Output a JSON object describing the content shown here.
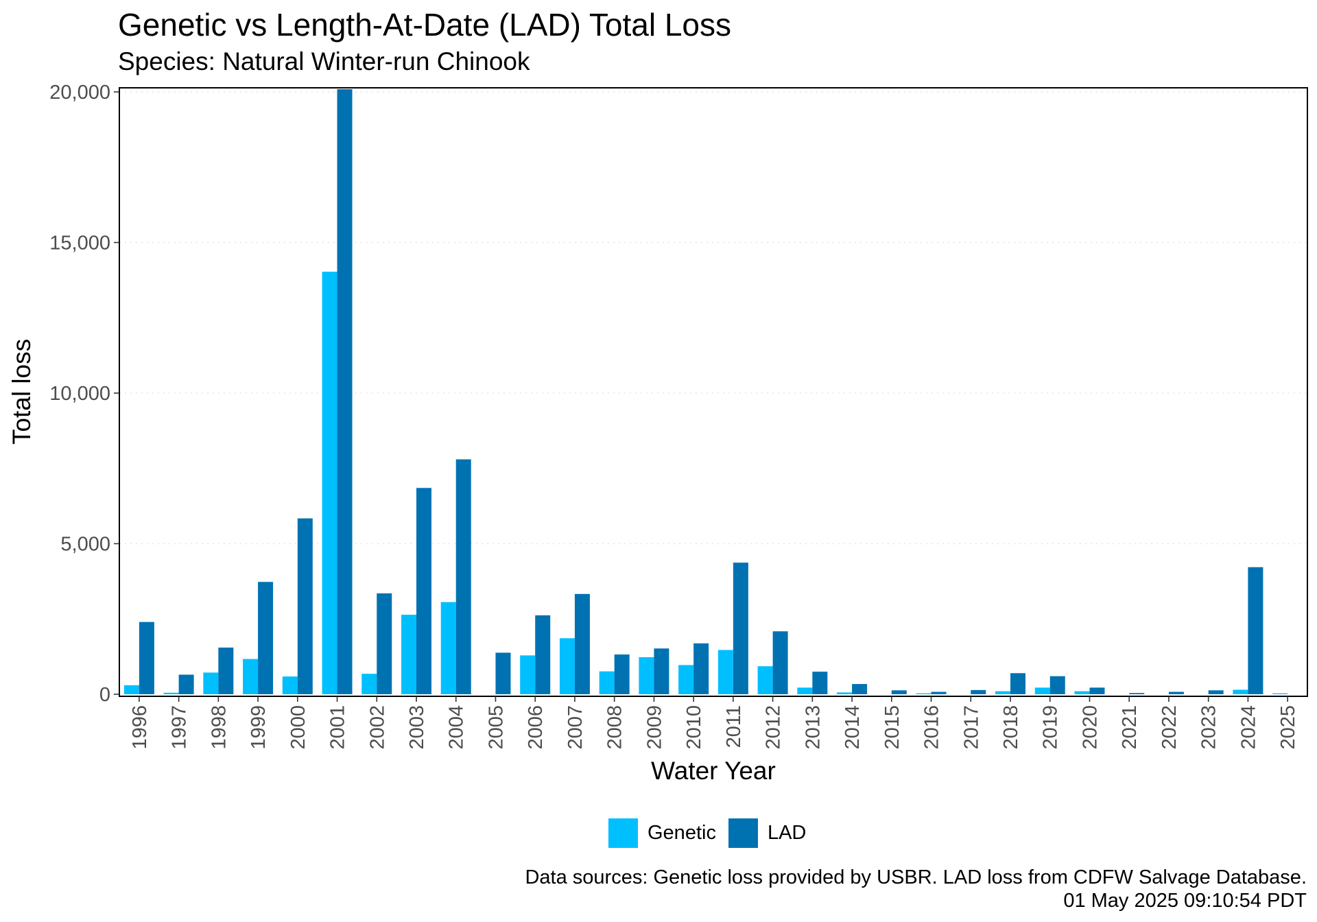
{
  "title": "Genetic vs Length-At-Date (LAD) Total Loss",
  "subtitle": "Species: Natural Winter-run Chinook",
  "caption": {
    "line1": "Data sources: Genetic loss provided by USBR. LAD loss from CDFW Salvage Database.",
    "line2": "01 May 2025 09:10:54 PDT"
  },
  "colors": {
    "Genetic": "#00BFFF",
    "LAD": "#0072B2"
  },
  "chart_data": {
    "type": "bar",
    "xlabel": "Water Year",
    "ylabel": "Total loss",
    "ylim": [
      0,
      20000
    ],
    "yticks": [
      0,
      5000,
      10000,
      15000,
      20000
    ],
    "ytick_labels": [
      "0",
      "5,000",
      "10,000",
      "15,000",
      "20,000"
    ],
    "grid": "horizontal dotted major lines",
    "legend_position": "bottom",
    "categories": [
      "1996",
      "1997",
      "1998",
      "1999",
      "2000",
      "2001",
      "2002",
      "2003",
      "2004",
      "2005",
      "2006",
      "2007",
      "2008",
      "2009",
      "2010",
      "2011",
      "2012",
      "2013",
      "2014",
      "2015",
      "2016",
      "2017",
      "2018",
      "2019",
      "2020",
      "2021",
      "2022",
      "2023",
      "2024",
      "2025"
    ],
    "series": [
      {
        "name": "Genetic",
        "values": [
          300,
          50,
          720,
          1170,
          590,
          14030,
          680,
          2640,
          3060,
          0,
          1290,
          1860,
          760,
          1230,
          970,
          1470,
          930,
          220,
          60,
          0,
          30,
          0,
          100,
          220,
          100,
          0,
          0,
          0,
          150,
          30
        ]
      },
      {
        "name": "LAD",
        "values": [
          2400,
          650,
          1550,
          3730,
          5840,
          20090,
          3350,
          6850,
          7800,
          1380,
          2620,
          3330,
          1320,
          1520,
          1690,
          4370,
          2090,
          750,
          340,
          130,
          80,
          140,
          700,
          600,
          220,
          40,
          80,
          130,
          4220,
          0
        ]
      }
    ]
  }
}
